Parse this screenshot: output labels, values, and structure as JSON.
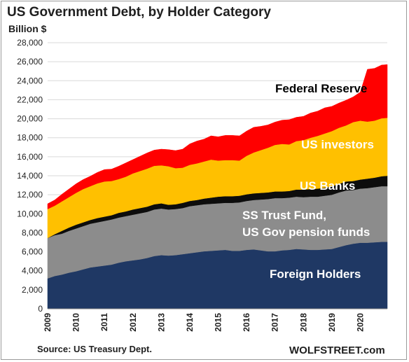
{
  "chart_data": {
    "type": "area",
    "stacked": true,
    "title": "US Government Debt, by Holder Category",
    "y_unit_label": "Billion $",
    "source": "Source: US Treasury Dept.",
    "brand": "WOLFSTREET.com",
    "ylim": [
      0,
      28000
    ],
    "xlim": [
      2009.0,
      2020.95
    ],
    "grid": "horizontal",
    "y_ticks": [
      "0",
      "2,000",
      "4,000",
      "6,000",
      "8,000",
      "10,000",
      "12,000",
      "14,000",
      "16,000",
      "18,000",
      "20,000",
      "22,000",
      "24,000",
      "26,000",
      "28,000"
    ],
    "y_tick_values": [
      0,
      2000,
      4000,
      6000,
      8000,
      10000,
      12000,
      14000,
      16000,
      18000,
      20000,
      22000,
      24000,
      26000,
      28000
    ],
    "x_ticks": [
      "2009",
      "2010",
      "2011",
      "2012",
      "2013",
      "2014",
      "2015",
      "2016",
      "2017",
      "2018",
      "2019",
      "2020"
    ],
    "x_tick_values": [
      2009,
      2010,
      2011,
      2012,
      2013,
      2014,
      2015,
      2016,
      2017,
      2018,
      2019,
      2020
    ],
    "x": [
      2009.0,
      2009.25,
      2009.5,
      2009.75,
      2010.0,
      2010.25,
      2010.5,
      2010.75,
      2011.0,
      2011.25,
      2011.5,
      2011.75,
      2012.0,
      2012.25,
      2012.5,
      2012.75,
      2013.0,
      2013.25,
      2013.5,
      2013.75,
      2014.0,
      2014.25,
      2014.5,
      2014.75,
      2015.0,
      2015.25,
      2015.5,
      2015.75,
      2016.0,
      2016.25,
      2016.5,
      2016.75,
      2017.0,
      2017.25,
      2017.5,
      2017.75,
      2018.0,
      2018.25,
      2018.5,
      2018.75,
      2019.0,
      2019.25,
      2019.5,
      2019.75,
      2020.0,
      2020.25,
      2020.5,
      2020.75,
      2020.95
    ],
    "series": [
      {
        "name": "Foreign Holders",
        "color": "#1f3864",
        "values": [
          3200,
          3450,
          3600,
          3800,
          3950,
          4150,
          4350,
          4450,
          4550,
          4650,
          4850,
          5000,
          5100,
          5200,
          5350,
          5550,
          5650,
          5600,
          5650,
          5750,
          5850,
          5950,
          6050,
          6100,
          6150,
          6200,
          6100,
          6100,
          6200,
          6250,
          6150,
          6050,
          6050,
          6150,
          6200,
          6300,
          6250,
          6200,
          6200,
          6250,
          6300,
          6500,
          6700,
          6850,
          6950,
          6950,
          7000,
          7050,
          7050
        ]
      },
      {
        "name": "SS Trust Fund, US Gov pension funds",
        "color": "#8c8c8c",
        "values": [
          4250,
          4300,
          4300,
          4400,
          4500,
          4550,
          4600,
          4650,
          4700,
          4750,
          4750,
          4750,
          4800,
          4850,
          4850,
          4900,
          4900,
          4850,
          4850,
          4850,
          4950,
          4950,
          4950,
          4950,
          4950,
          4950,
          5050,
          5100,
          5150,
          5200,
          5350,
          5500,
          5600,
          5500,
          5500,
          5500,
          5500,
          5600,
          5600,
          5650,
          5700,
          5750,
          5750,
          5650,
          5700,
          5750,
          5800,
          5850,
          5850
        ]
      },
      {
        "name": "US Banks",
        "color": "#0d0d0d",
        "values": [
          0,
          100,
          300,
          350,
          400,
          400,
          400,
          450,
          450,
          450,
          500,
          500,
          550,
          550,
          550,
          550,
          550,
          500,
          500,
          550,
          550,
          550,
          600,
          650,
          700,
          700,
          700,
          700,
          700,
          700,
          700,
          700,
          700,
          700,
          700,
          750,
          800,
          800,
          850,
          850,
          900,
          900,
          950,
          950,
          950,
          1000,
          1000,
          1050,
          1100
        ]
      },
      {
        "name": "US investors",
        "color": "#ffc000",
        "values": [
          3050,
          3000,
          3100,
          3200,
          3350,
          3500,
          3550,
          3650,
          3700,
          3600,
          3550,
          3650,
          3800,
          3900,
          4000,
          4050,
          4000,
          4050,
          3800,
          3700,
          3800,
          3850,
          3900,
          4000,
          3800,
          3800,
          3800,
          3700,
          4050,
          4300,
          4500,
          4700,
          4900,
          5000,
          4900,
          5100,
          5200,
          5400,
          5550,
          5700,
          5800,
          5900,
          5900,
          6200,
          6200,
          6000,
          6000,
          6100,
          6100
        ]
      },
      {
        "name": "Federal Reserve",
        "color": "#ff0000",
        "values": [
          550,
          600,
          750,
          850,
          950,
          1000,
          1050,
          1150,
          1250,
          1250,
          1350,
          1450,
          1450,
          1550,
          1650,
          1650,
          1700,
          1750,
          1850,
          1950,
          2200,
          2350,
          2350,
          2500,
          2500,
          2600,
          2600,
          2600,
          2600,
          2650,
          2500,
          2400,
          2400,
          2500,
          2600,
          2500,
          2500,
          2600,
          2600,
          2700,
          2600,
          2600,
          2650,
          2650,
          3000,
          5500,
          5500,
          5600,
          5600
        ]
      }
    ]
  },
  "labels": {
    "federal_reserve": "Federal Reserve",
    "us_investors": "US investors",
    "us_banks": "US Banks",
    "ss_trust_line1": "SS Trust Fund,",
    "ss_trust_line2": "US Gov pension funds",
    "foreign_holders": "Foreign Holders"
  }
}
